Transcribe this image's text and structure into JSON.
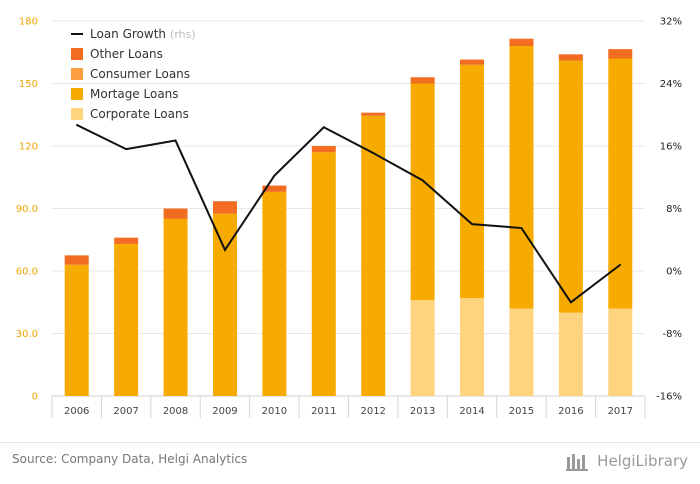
{
  "chart_data": {
    "type": "bar",
    "stacked": true,
    "categories": [
      "2006",
      "2007",
      "2008",
      "2009",
      "2010",
      "2011",
      "2012",
      "2013",
      "2014",
      "2015",
      "2016",
      "2017"
    ],
    "series": [
      {
        "name": "Corporate Loans",
        "color": "#ffd47f",
        "axis": "left",
        "values": [
          0,
          0,
          0,
          0,
          0,
          0,
          0,
          46,
          47,
          42,
          40,
          42
        ]
      },
      {
        "name": "Mortage Loans",
        "color": "#f7ab00",
        "axis": "left",
        "values": [
          63,
          73,
          85,
          87.5,
          98,
          117,
          134.5,
          104,
          112,
          126,
          121,
          120
        ]
      },
      {
        "name": "Consumer Loans",
        "color": "#ff9e40",
        "axis": "left",
        "values": [
          0,
          0,
          0,
          0,
          0,
          0,
          0,
          0,
          0,
          0,
          0,
          0
        ]
      },
      {
        "name": "Other Loans",
        "color": "#f26c21",
        "axis": "left",
        "values": [
          4.5,
          3,
          5,
          6,
          3,
          3,
          1.5,
          3,
          2.5,
          3.5,
          3,
          4.5
        ]
      },
      {
        "name": "Loan Growth",
        "note": "(rhs)",
        "color": "#111111",
        "axis": "right",
        "type": "line",
        "values": [
          18.7,
          15.6,
          16.7,
          2.7,
          12.2,
          18.4,
          15.1,
          11.6,
          6,
          5.5,
          -4,
          0.8
        ]
      }
    ],
    "legend_order": [
      "Loan Growth",
      "Other Loans",
      "Consumer Loans",
      "Mortage Loans",
      "Corporate Loans"
    ],
    "left_axis": {
      "ylim": [
        0,
        180
      ],
      "ticks": [
        "0",
        "30.0",
        "60.0",
        "90.0",
        "120",
        "150",
        "180"
      ]
    },
    "right_axis": {
      "ylim": [
        -16,
        32
      ],
      "ticks": [
        "-16%",
        "-8%",
        "0%",
        "8%",
        "16%",
        "24%",
        "32%"
      ]
    },
    "grid": true,
    "legend_position": "top-left"
  },
  "footer": {
    "source": "Source: Company Data, Helgi Analytics",
    "brand": "HelgiLibrary"
  }
}
